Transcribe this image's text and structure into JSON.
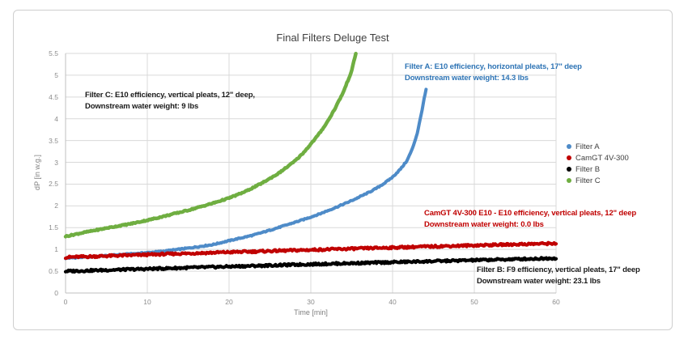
{
  "chart_data": {
    "type": "scatter",
    "title": "Final Filters Deluge Test",
    "xlabel": "Time [min]",
    "ylabel": "dP [in w.g.]",
    "xlim": [
      0,
      60
    ],
    "ylim": [
      0,
      5.5
    ],
    "x_ticks": [
      "0",
      "10",
      "20",
      "30",
      "40",
      "50",
      "60"
    ],
    "y_ticks": [
      "0",
      "0.5",
      "1",
      "1.5",
      "2",
      "2.5",
      "3",
      "3.5",
      "4",
      "4.5",
      "5",
      "5.5"
    ],
    "grid": true,
    "legend_position": "right",
    "gridline_color": "#d9d9d9",
    "series": [
      {
        "name": "Filter A",
        "color": "#4E8BC8",
        "noise": 0.013,
        "width": 4,
        "points": [
          [
            0,
            0.8
          ],
          [
            3,
            0.83
          ],
          [
            6,
            0.87
          ],
          [
            9,
            0.91
          ],
          [
            12,
            0.96
          ],
          [
            15,
            1.03
          ],
          [
            18,
            1.11
          ],
          [
            20,
            1.2
          ],
          [
            23,
            1.33
          ],
          [
            26,
            1.5
          ],
          [
            29,
            1.68
          ],
          [
            31,
            1.81
          ],
          [
            33,
            1.96
          ],
          [
            35,
            2.12
          ],
          [
            37,
            2.3
          ],
          [
            38,
            2.4
          ],
          [
            39,
            2.52
          ],
          [
            40,
            2.66
          ],
          [
            41,
            2.85
          ],
          [
            41.8,
            3.05
          ],
          [
            42.4,
            3.3
          ],
          [
            43,
            3.65
          ],
          [
            43.4,
            4.0
          ],
          [
            43.8,
            4.4
          ],
          [
            44.1,
            4.67
          ]
        ]
      },
      {
        "name": "CamGT 4V-300",
        "color": "#C00000",
        "noise": 0.024,
        "width": 4.2,
        "points": [
          [
            0,
            0.82
          ],
          [
            15,
            0.91
          ],
          [
            30,
            0.99
          ],
          [
            45,
            1.07
          ],
          [
            60,
            1.14
          ]
        ]
      },
      {
        "name": "Filter B",
        "color": "#000000",
        "noise": 0.024,
        "width": 4.2,
        "points": [
          [
            0,
            0.5
          ],
          [
            15,
            0.58
          ],
          [
            30,
            0.66
          ],
          [
            45,
            0.73
          ],
          [
            60,
            0.8
          ]
        ]
      },
      {
        "name": "Filter C",
        "color": "#6FAE41",
        "noise": 0.013,
        "width": 4.5,
        "points": [
          [
            0,
            1.3
          ],
          [
            2,
            1.38
          ],
          [
            5,
            1.49
          ],
          [
            8,
            1.59
          ],
          [
            10,
            1.67
          ],
          [
            12,
            1.76
          ],
          [
            15,
            1.9
          ],
          [
            18,
            2.06
          ],
          [
            20,
            2.18
          ],
          [
            22,
            2.33
          ],
          [
            24,
            2.52
          ],
          [
            26,
            2.74
          ],
          [
            28,
            3.02
          ],
          [
            29,
            3.2
          ],
          [
            30,
            3.42
          ],
          [
            31,
            3.65
          ],
          [
            32,
            3.92
          ],
          [
            33,
            4.25
          ],
          [
            34,
            4.62
          ],
          [
            35,
            5.1
          ],
          [
            35.5,
            5.5
          ]
        ]
      }
    ],
    "annotations": [
      {
        "id": "filter-a",
        "color": "#2E74B5",
        "line1": "Filter A: E10 efficiency, horizontal pleats, 17\" deep",
        "line2": "Downstream water weight: 14.3 lbs"
      },
      {
        "id": "camgt",
        "color": "#C00000",
        "line1": "CamGT 4V-300 E10 - E10 efficiency, vertical pleats, 12\" deep",
        "line2": "Downstream water weight: 0.0 lbs"
      },
      {
        "id": "filter-c",
        "color": "#1a1a1a",
        "line1": "Filter C: E10 efficiency, vertical pleats, 12\" deep,",
        "line2": "Downstream water weight: 9 lbs"
      },
      {
        "id": "filter-b",
        "color": "#1a1a1a",
        "line1": "Filter B: F9 efficiency, vertical pleats, 17\" deep",
        "line2": "Downstream water weight: 23.1 lbs"
      }
    ]
  }
}
